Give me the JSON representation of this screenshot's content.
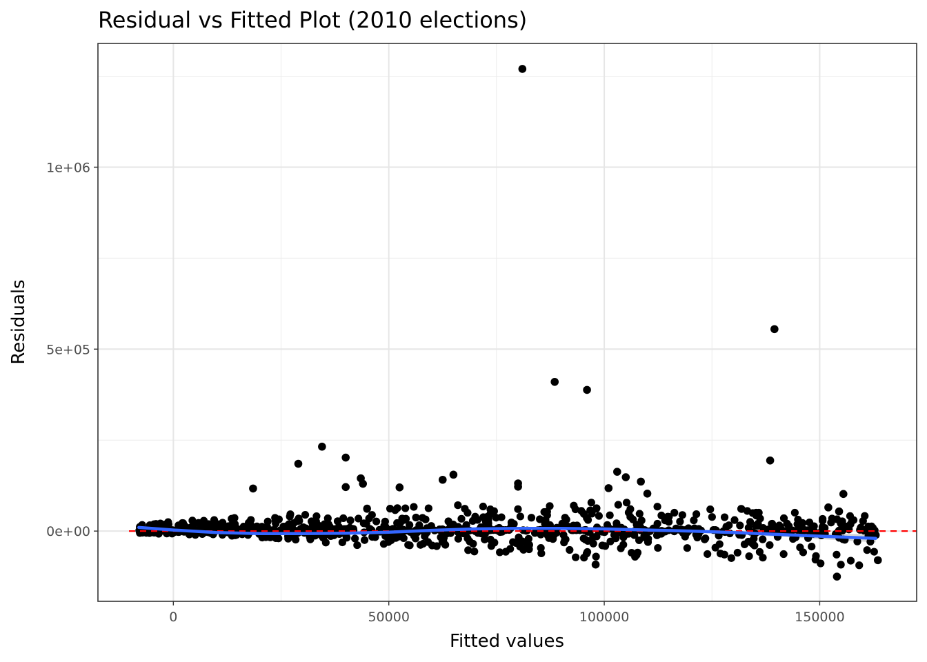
{
  "chart_data": {
    "type": "scatter",
    "title": "Residual vs Fitted Plot (2010 elections)",
    "xlabel": "Fitted values",
    "ylabel": "Residuals",
    "xlim": [
      -17500,
      172500
    ],
    "ylim": [
      -193000,
      1340000
    ],
    "x_ticks": [
      0,
      50000,
      100000,
      150000
    ],
    "x_tick_labels": [
      "0",
      "50000",
      "100000",
      "150000"
    ],
    "y_ticks": [
      0,
      500000,
      1000000
    ],
    "y_tick_labels": [
      "0e+00",
      "5e+05",
      "1e+06"
    ],
    "grid": true,
    "reference_line": {
      "y": 0,
      "style": "dashed",
      "color": "#ff0000"
    },
    "smooth_line": {
      "color": "#3366ff",
      "x": [
        -8000,
        0,
        10000,
        20000,
        30000,
        40000,
        50000,
        60000,
        70000,
        80000,
        90000,
        100000,
        110000,
        120000,
        130000,
        140000,
        150000,
        163000
      ],
      "y": [
        10000,
        3000,
        -4000,
        -7000,
        -7000,
        -6000,
        -3000,
        2000,
        6000,
        7500,
        7500,
        6000,
        3000,
        0,
        -4000,
        -9000,
        -14000,
        -20000
      ],
      "band_half_width": [
        4000,
        3000,
        2000,
        2000,
        2000,
        2000,
        2000,
        2500,
        3000,
        3000,
        3000,
        3000,
        3500,
        4000,
        5000,
        6000,
        8000,
        11000
      ]
    },
    "points_color": "#000000",
    "outliers": [
      {
        "x": 81000,
        "y": 1270000
      },
      {
        "x": 139500,
        "y": 555000
      },
      {
        "x": 88500,
        "y": 410000
      },
      {
        "x": 96000,
        "y": 388000
      },
      {
        "x": 34500,
        "y": 232000
      },
      {
        "x": 40000,
        "y": 202000
      },
      {
        "x": 138500,
        "y": 194000
      },
      {
        "x": 29000,
        "y": 185000
      },
      {
        "x": 103000,
        "y": 163000
      },
      {
        "x": 65000,
        "y": 155000
      },
      {
        "x": 105000,
        "y": 148000
      },
      {
        "x": 43500,
        "y": 145000
      },
      {
        "x": 62500,
        "y": 141000
      },
      {
        "x": 108500,
        "y": 136000
      },
      {
        "x": 44000,
        "y": 130000
      },
      {
        "x": 80000,
        "y": 131000
      },
      {
        "x": 18500,
        "y": 117000
      },
      {
        "x": 40000,
        "y": 121000
      },
      {
        "x": 52500,
        "y": 120000
      },
      {
        "x": 101000,
        "y": 118000
      },
      {
        "x": 80000,
        "y": 122000
      },
      {
        "x": 110000,
        "y": 103000
      },
      {
        "x": 155500,
        "y": 102000
      },
      {
        "x": 146000,
        "y": 22000
      },
      {
        "x": 163000,
        "y": -11000
      },
      {
        "x": 163500,
        "y": -80000
      },
      {
        "x": 154000,
        "y": -125000
      },
      {
        "x": 98000,
        "y": -92000
      },
      {
        "x": 152000,
        "y": 65000
      },
      {
        "x": 154500,
        "y": 54000
      }
    ],
    "bulk": {
      "count": 900,
      "x_range": [
        -8000,
        163000
      ],
      "spread_curve": [
        {
          "x": -8000,
          "upper": 15000,
          "lower": -8000
        },
        {
          "x": 0,
          "upper": 25000,
          "lower": -10000
        },
        {
          "x": 20000,
          "upper": 40000,
          "lower": -20000
        },
        {
          "x": 40000,
          "upper": 60000,
          "lower": -40000
        },
        {
          "x": 60000,
          "upper": 70000,
          "lower": -55000
        },
        {
          "x": 80000,
          "upper": 75000,
          "lower": -65000
        },
        {
          "x": 100000,
          "upper": 80000,
          "lower": -80000
        },
        {
          "x": 130000,
          "upper": 60000,
          "lower": -90000
        },
        {
          "x": 163000,
          "upper": 40000,
          "lower": -100000
        }
      ]
    }
  }
}
